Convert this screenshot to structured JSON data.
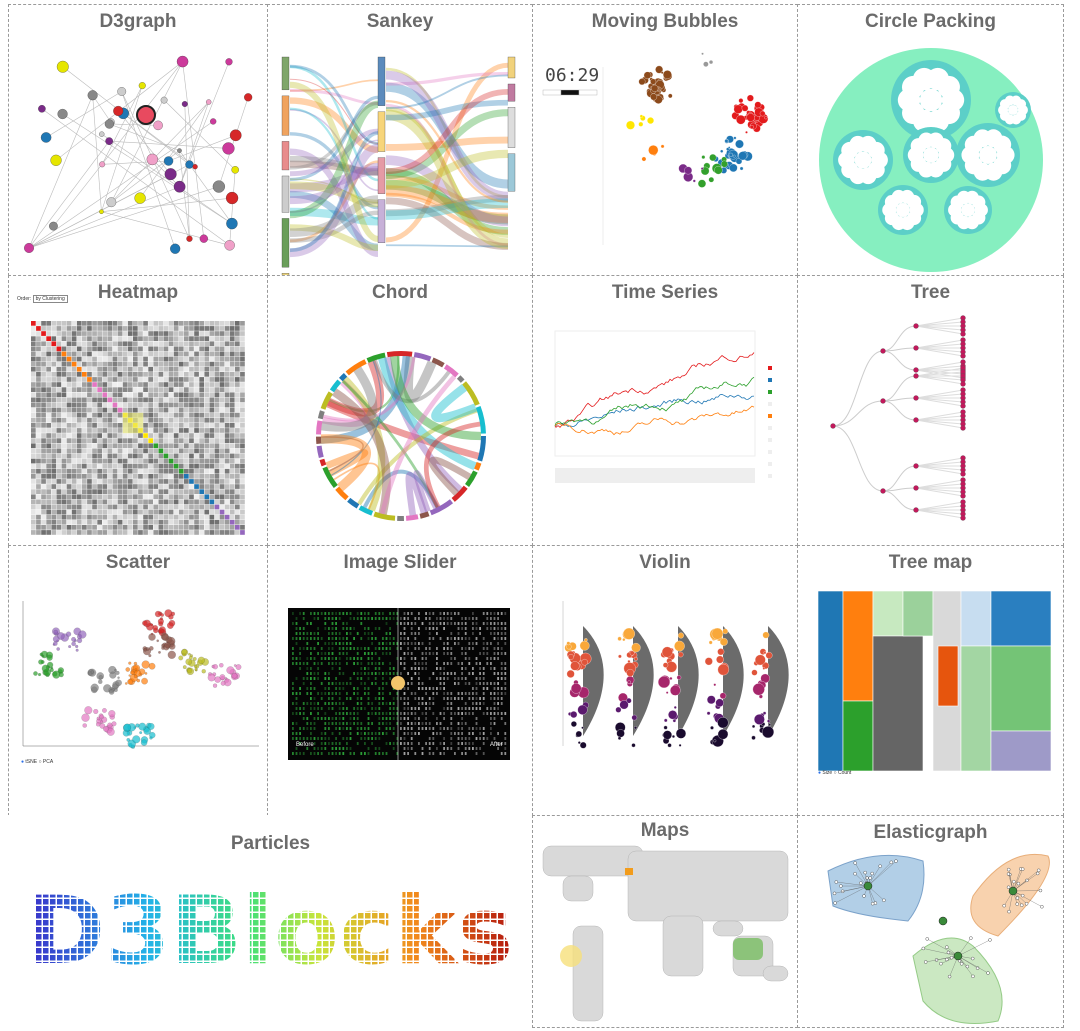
{
  "panels": [
    {
      "id": "d3graph",
      "title": "D3graph"
    },
    {
      "id": "sankey",
      "title": "Sankey"
    },
    {
      "id": "movingbubbles",
      "title": "Moving Bubbles"
    },
    {
      "id": "circlepacking",
      "title": "Circle Packing"
    },
    {
      "id": "heatmap",
      "title": "Heatmap"
    },
    {
      "id": "chord",
      "title": "Chord"
    },
    {
      "id": "timeseries",
      "title": "Time Series"
    },
    {
      "id": "tree",
      "title": "Tree"
    },
    {
      "id": "scatter",
      "title": "Scatter"
    },
    {
      "id": "imageslider",
      "title": "Image Slider"
    },
    {
      "id": "violin",
      "title": "Violin"
    },
    {
      "id": "treemap",
      "title": "Tree map"
    },
    {
      "id": "particles",
      "title": "Particles"
    },
    {
      "id": "maps",
      "title": "Maps"
    },
    {
      "id": "elasticgraph",
      "title": "Elasticgraph"
    }
  ],
  "movingbubbles": {
    "clock": "06:29"
  },
  "heatmap": {
    "order_label": "Order:",
    "order_value": "by Clustering"
  },
  "scatter": {
    "legend": [
      "tSNE",
      "PCA"
    ]
  },
  "imageslider": {
    "before": "Before",
    "after": "After"
  },
  "treemap": {
    "legend": [
      "Size",
      "Count"
    ]
  },
  "particles": {
    "text": "D3Blocks"
  },
  "colors": {
    "title": "#6b6b6b",
    "border": "#9a9a9a",
    "mint": "#7ee8b8",
    "teal": "#5ccfc8"
  }
}
